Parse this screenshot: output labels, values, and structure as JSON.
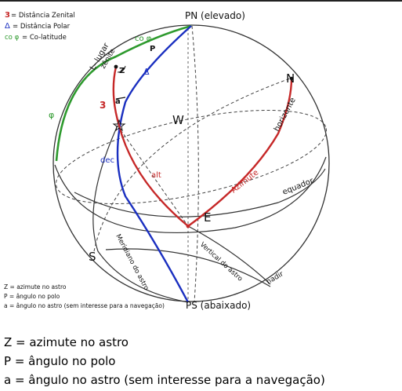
{
  "legend": {
    "z3_symbol": "3",
    "z3_text": "= Distância Zenital",
    "delta_symbol": "Δ",
    "delta_text": "= Distância Polar",
    "cophi_symbol": "co φ",
    "cophi_text": "= Co-latitude"
  },
  "labels": {
    "pn": "PN (elevado)",
    "ps": "PS (abaixado)",
    "n": "N",
    "s": "S",
    "e": "E",
    "w": "W",
    "z": "Z",
    "p": "P",
    "a": "a",
    "three": "3",
    "delta": "Δ",
    "cophi": "co φ",
    "phi": "φ",
    "dec": "dec",
    "alt": "alt",
    "azimute": "Azimute",
    "horizonte": "horizonte",
    "equador": "equador",
    "nadir": "nadir",
    "l_lugar": "L- lugar",
    "zenite": "zênite",
    "meridiano": "Meridiano do astro",
    "vertical": "Vertical do astro"
  },
  "inner_notes": {
    "z": "Z = azimute no astro",
    "p": "P = ângulo no polo",
    "a": "a = ângulo no astro (sem interesse para a navegação)"
  },
  "captions": {
    "z": "Z = azimute no astro",
    "p": "P = ângulo no polo",
    "a": "a = ângulo no astro (sem interesse para a navegação)"
  },
  "colors": {
    "red": "#c62828",
    "blue": "#1a2fc0",
    "green": "#2e9a2e"
  }
}
